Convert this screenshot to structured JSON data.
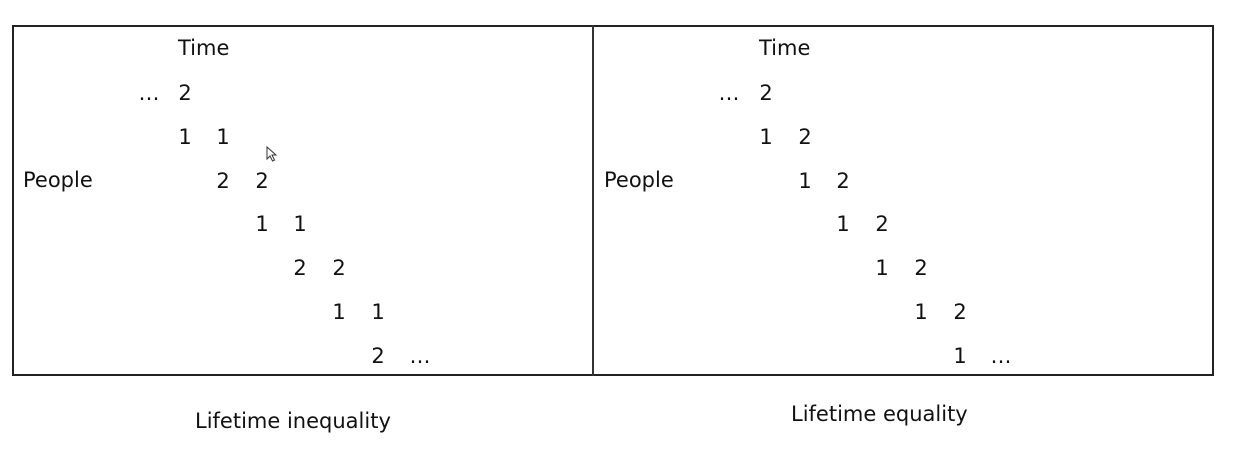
{
  "panels": [
    {
      "id": "left",
      "time_label": "Time",
      "people_label": "People",
      "caption": "Lifetime inequality",
      "rows": [
        [
          "…",
          "2"
        ],
        [
          "1",
          "1"
        ],
        [
          "2",
          "2"
        ],
        [
          "1",
          "1"
        ],
        [
          "2",
          "2"
        ],
        [
          "1",
          "1"
        ],
        [
          "2",
          "…"
        ]
      ]
    },
    {
      "id": "right",
      "time_label": "Time",
      "people_label": "People",
      "caption": "Lifetime equality",
      "rows": [
        [
          "…",
          "2"
        ],
        [
          "1",
          "2"
        ],
        [
          "1",
          "2"
        ],
        [
          "1",
          "2"
        ],
        [
          "1",
          "2"
        ],
        [
          "1",
          "2"
        ],
        [
          "1",
          "…"
        ]
      ]
    }
  ],
  "colors": {
    "text": "#111111",
    "border": "#222222",
    "background": "#ffffff"
  }
}
